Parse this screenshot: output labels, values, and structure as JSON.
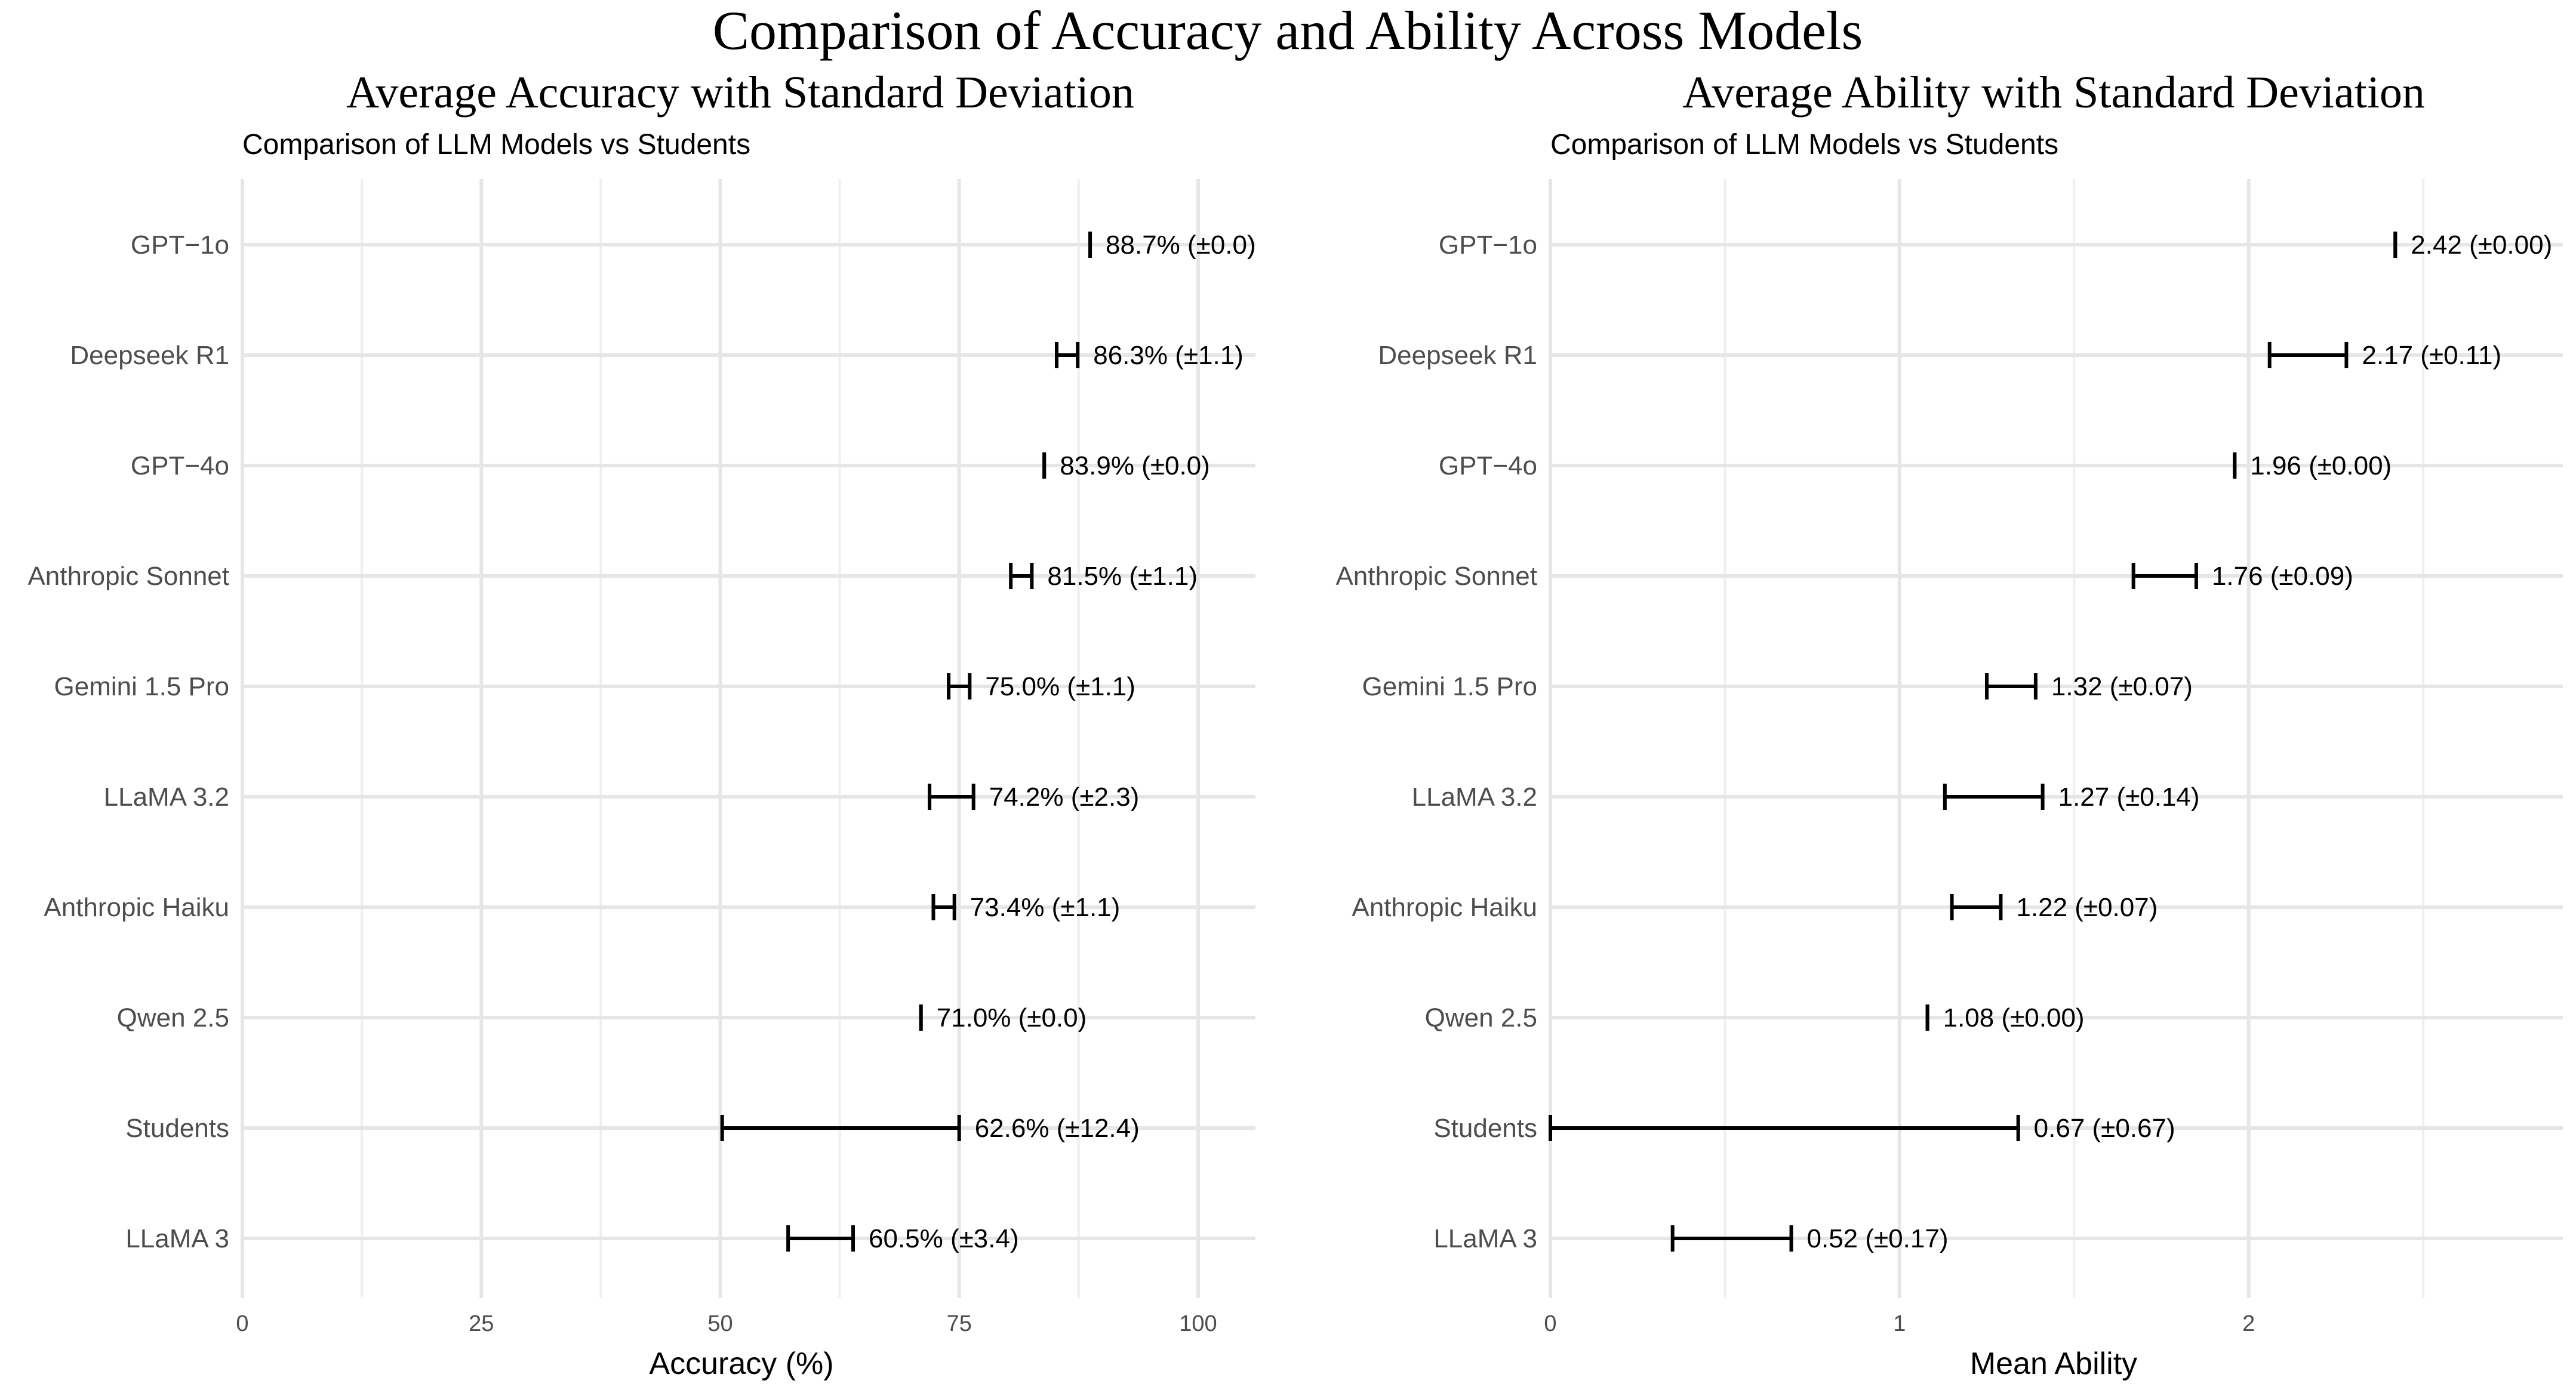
{
  "main_title": "Comparison of Accuracy and Ability Across Models",
  "chart_data": [
    {
      "type": "errorbar",
      "title": "Average Accuracy with Standard Deviation",
      "subtitle": "Comparison of LLM Models vs Students",
      "xlabel": "Accuracy (%)",
      "ylabel": "",
      "xlim": [
        0,
        106
      ],
      "xticks": [
        0,
        25,
        50,
        75,
        100
      ],
      "xtick_labels": [
        "0",
        "25",
        "50",
        "75",
        "100"
      ],
      "categories": [
        "GPT−1o",
        "Deepseek R1",
        "GPT−4o",
        "Anthropic Sonnet",
        "Gemini 1.5 Pro",
        "LLaMA 3.2",
        "Anthropic Haiku",
        "Qwen 2.5",
        "Students",
        "LLaMA 3"
      ],
      "values": [
        88.7,
        86.3,
        83.9,
        81.5,
        75.0,
        74.2,
        73.4,
        71.0,
        62.6,
        60.5
      ],
      "errors": [
        0.0,
        1.1,
        0.0,
        1.1,
        1.1,
        2.3,
        1.1,
        0.0,
        12.4,
        3.4
      ],
      "labels": [
        "88.7% (±0.0)",
        "86.3% (±1.1)",
        "83.9% (±0.0)",
        "81.5% (±1.1)",
        "75.0% (±1.1)",
        "74.2% (±2.3)",
        "73.4% (±1.1)",
        "71.0% (±0.0)",
        "62.6% (±12.4)",
        "60.5% (±3.4)"
      ],
      "grid": true
    },
    {
      "type": "errorbar",
      "title": "Average Ability with Standard Deviation",
      "subtitle": "Comparison of LLM Models vs Students",
      "xlabel": "Mean Ability",
      "ylabel": "",
      "xlim": [
        0,
        2.9
      ],
      "xticks": [
        0,
        1,
        2
      ],
      "xtick_labels": [
        "0",
        "1",
        "2"
      ],
      "categories": [
        "GPT−1o",
        "Deepseek R1",
        "GPT−4o",
        "Anthropic Sonnet",
        "Gemini 1.5 Pro",
        "LLaMA 3.2",
        "Anthropic Haiku",
        "Qwen 2.5",
        "Students",
        "LLaMA 3"
      ],
      "values": [
        2.42,
        2.17,
        1.96,
        1.76,
        1.32,
        1.27,
        1.22,
        1.08,
        0.67,
        0.52
      ],
      "errors": [
        0.0,
        0.11,
        0.0,
        0.09,
        0.07,
        0.14,
        0.07,
        0.0,
        0.67,
        0.17
      ],
      "labels": [
        "2.42 (±0.00)",
        "2.17 (±0.11)",
        "1.96 (±0.00)",
        "1.76 (±0.09)",
        "1.32 (±0.07)",
        "1.27 (±0.14)",
        "1.22 (±0.07)",
        "1.08 (±0.00)",
        "0.67 (±0.67)",
        "0.52 (±0.17)"
      ],
      "grid": true
    }
  ]
}
